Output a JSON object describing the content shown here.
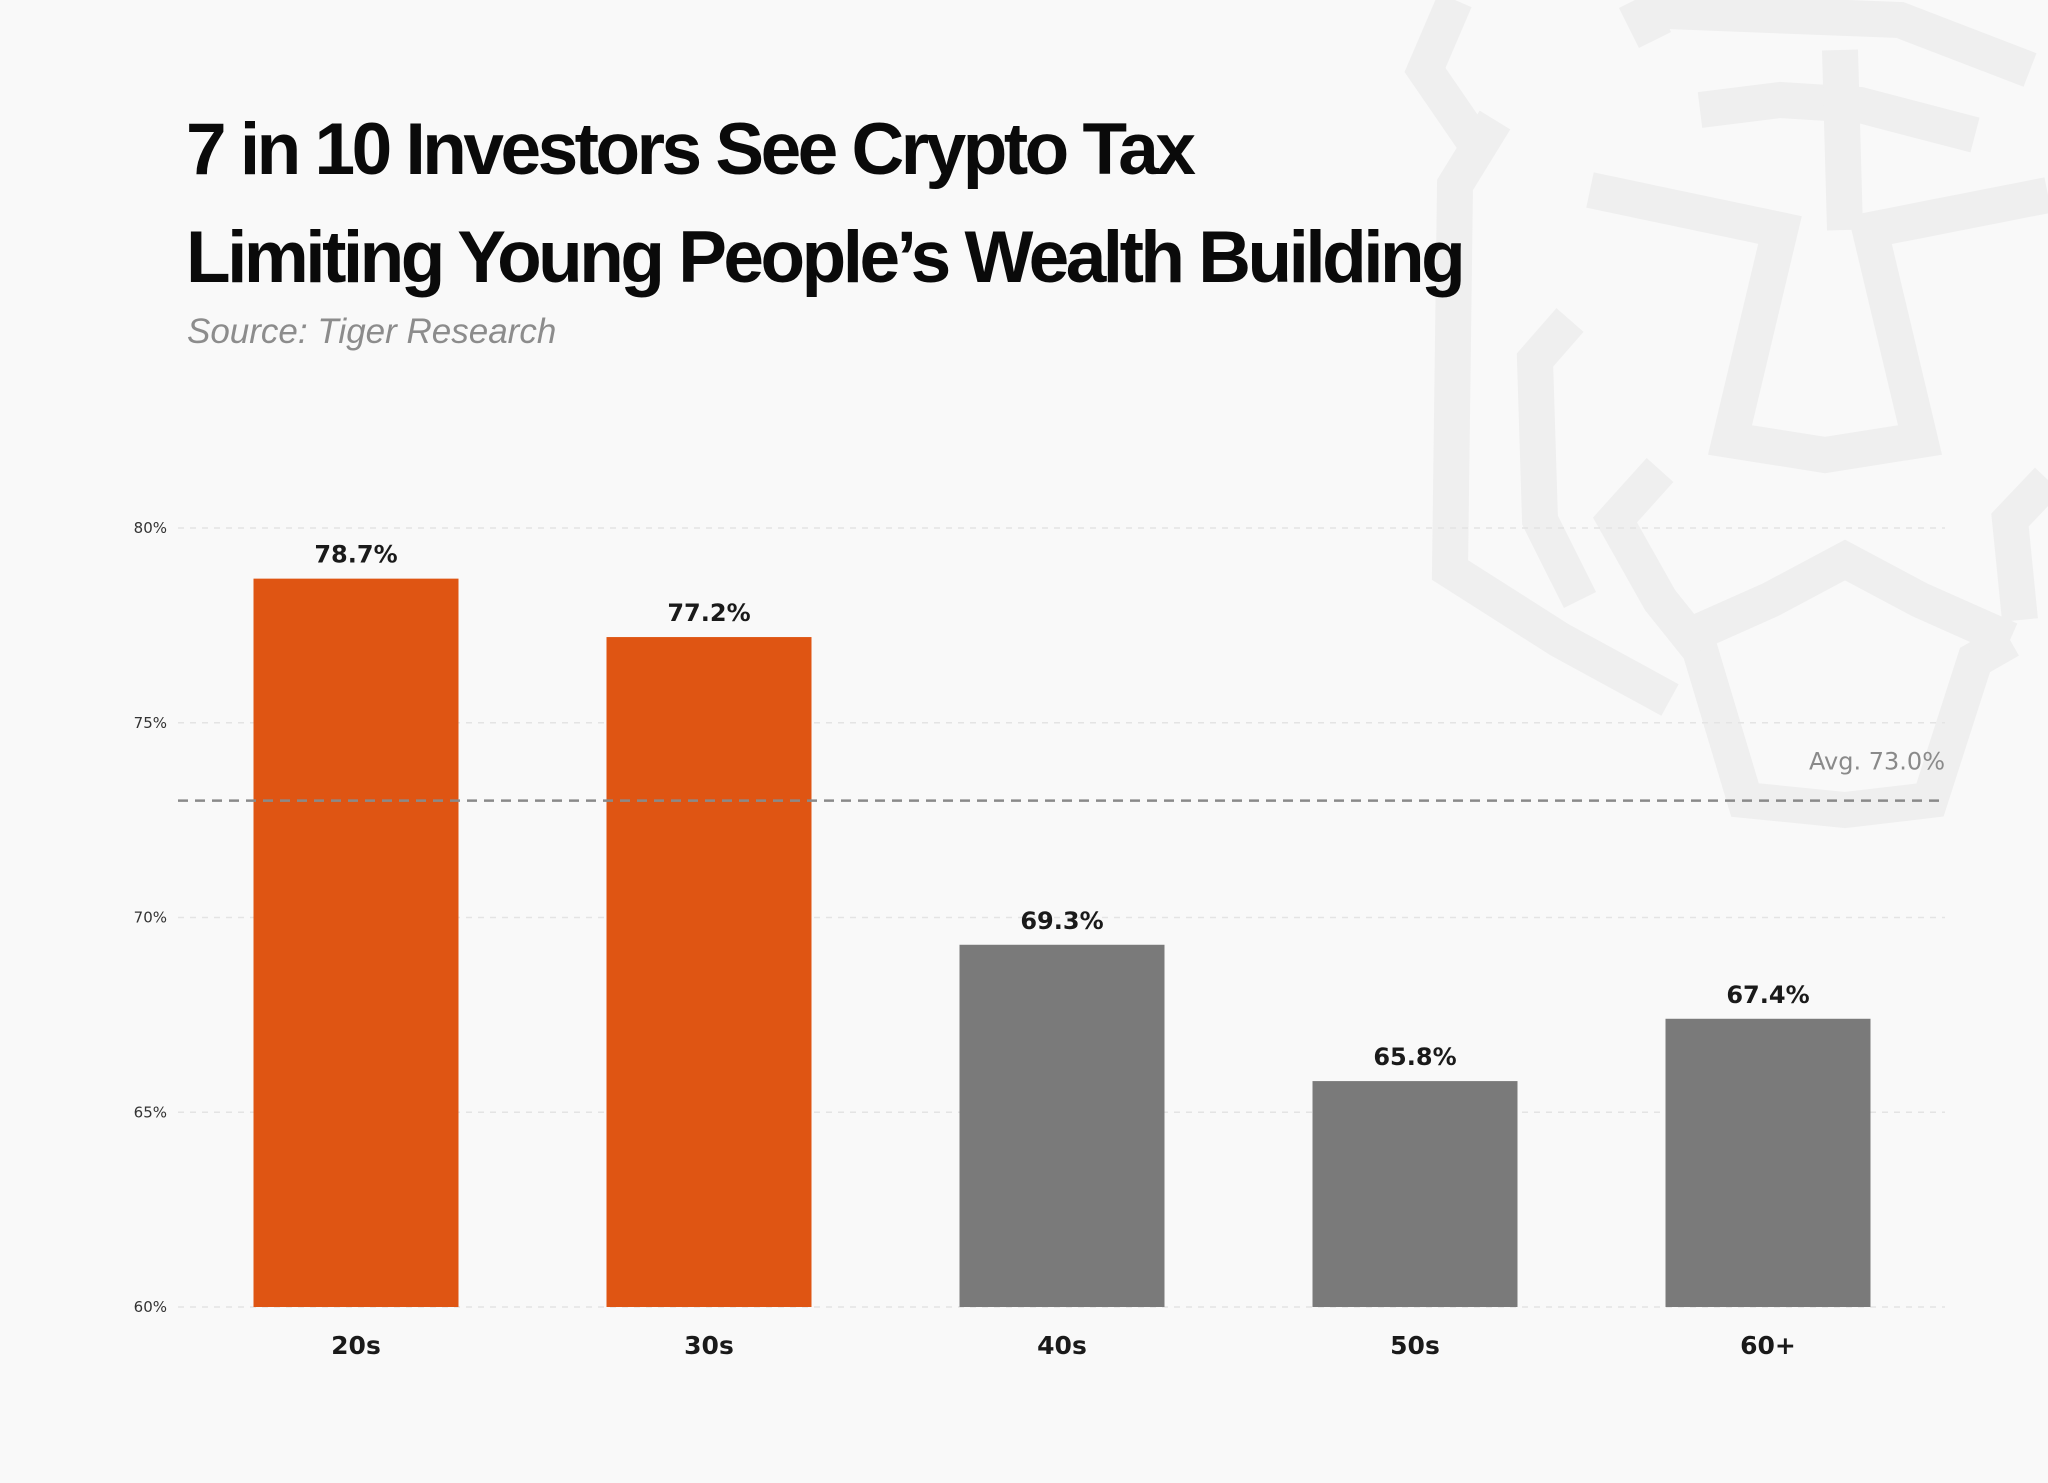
{
  "header": {
    "title_line_1": "7 in 10 Investors See Crypto Tax",
    "title_line_2": "Limiting Young People’s Wealth Building",
    "source": "Source: Tiger Research"
  },
  "colors": {
    "highlight": "#df5513",
    "neutral": "#7a7a7a",
    "background": "#f9f9f9",
    "watermark": "#efefef",
    "average_line": "#8a8a8a"
  },
  "watermark": {
    "icon": "tiger-logo-icon"
  },
  "chart_data": {
    "type": "bar",
    "categories": [
      "20s",
      "30s",
      "40s",
      "50s",
      "60+"
    ],
    "values": [
      78.7,
      77.2,
      69.3,
      65.8,
      67.4
    ],
    "value_labels": [
      "78.7%",
      "77.2%",
      "69.3%",
      "65.8%",
      "67.4%"
    ],
    "highlighted": [
      true,
      true,
      false,
      false,
      false
    ],
    "title": "7 in 10 Investors See Crypto Tax Limiting Young People’s Wealth Building",
    "xlabel": "",
    "ylabel": "",
    "ylim": [
      60,
      80
    ],
    "yticks": [
      60,
      65,
      70,
      75,
      80
    ],
    "ytick_labels": [
      "60%",
      "65%",
      "70%",
      "75%",
      "80%"
    ],
    "grid": true,
    "legend": "none",
    "reference_line": {
      "value": 73.0,
      "label": "Avg. 73.0%",
      "style": "dashed"
    }
  }
}
